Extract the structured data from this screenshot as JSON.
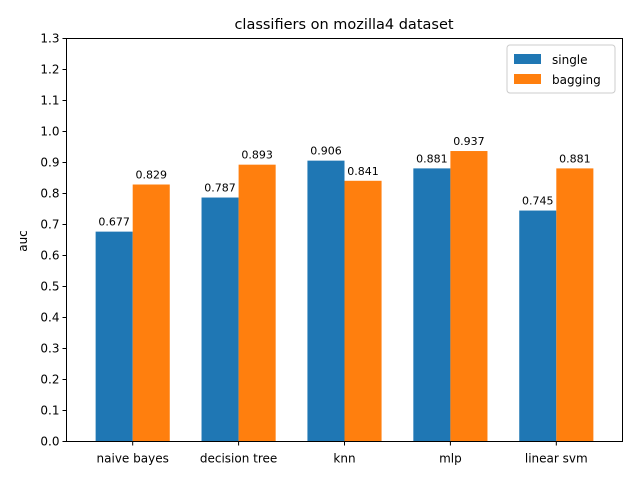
{
  "chart_data": {
    "type": "bar",
    "title": "classifiers on mozilla4 dataset",
    "xlabel": "",
    "ylabel": "auc",
    "categories": [
      "naive bayes",
      "decision tree",
      "knn",
      "mlp",
      "linear svm"
    ],
    "series": [
      {
        "name": "single",
        "color": "#1f77b4",
        "values": [
          0.677,
          0.787,
          0.906,
          0.881,
          0.745
        ],
        "labels": [
          "0.677",
          "0.787",
          "0.906",
          "0.881",
          "0.745"
        ]
      },
      {
        "name": "bagging",
        "color": "#ff7f0e",
        "values": [
          0.829,
          0.893,
          0.841,
          0.937,
          0.881
        ],
        "labels": [
          "0.829",
          "0.893",
          "0.841",
          "0.937",
          "0.881"
        ]
      }
    ],
    "ylim": [
      0,
      1.3
    ],
    "yticks": [
      "0.0",
      "0.1",
      "0.2",
      "0.3",
      "0.4",
      "0.5",
      "0.6",
      "0.7",
      "0.8",
      "0.9",
      "1.0",
      "1.1",
      "1.2",
      "1.3"
    ],
    "grid": false,
    "legend_position": "top-right"
  }
}
